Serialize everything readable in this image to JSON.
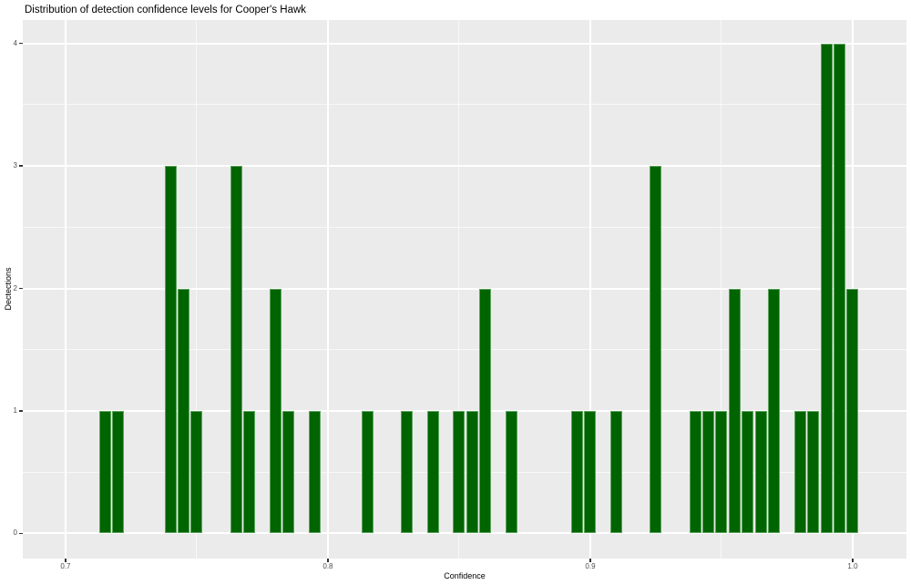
{
  "chart_data": {
    "type": "bar",
    "subtype": "histogram",
    "title": "Distribution of detection confidence levels for Cooper's Hawk",
    "xlabel": "Confidence",
    "ylabel": "Dectections",
    "legend": "none",
    "grid": "on",
    "panel_color": "#ebebeb",
    "grid_color": "#ffffff",
    "bar_color": "#006400",
    "bar_edge_color": "#5ea45e",
    "tick_label_color": "#4d4d4d",
    "tick_mark_color": "#333333",
    "bin_width": 0.005,
    "x_range": [
      0.6837,
      1.0205
    ],
    "y_range": [
      -0.2045,
      4.19
    ],
    "x_ticks": [
      {
        "value": 0.7,
        "label": "0.7"
      },
      {
        "value": 0.8,
        "label": "0.8"
      },
      {
        "value": 0.9,
        "label": "0.9"
      },
      {
        "value": 1.0,
        "label": "1.0"
      }
    ],
    "y_ticks": [
      {
        "value": 0,
        "label": "0"
      },
      {
        "value": 1,
        "label": "1"
      },
      {
        "value": 2,
        "label": "2"
      },
      {
        "value": 3,
        "label": "3"
      },
      {
        "value": 4,
        "label": "4"
      }
    ],
    "x_minor_ticks": [
      0.75,
      0.85,
      0.95
    ],
    "y_minor_ticks": [
      0.5,
      1.5,
      2.5,
      3.5
    ],
    "bins": [
      {
        "confidence": 0.715,
        "detections": 1
      },
      {
        "confidence": 0.72,
        "detections": 1
      },
      {
        "confidence": 0.74,
        "detections": 3
      },
      {
        "confidence": 0.745,
        "detections": 2
      },
      {
        "confidence": 0.75,
        "detections": 1
      },
      {
        "confidence": 0.765,
        "detections": 3
      },
      {
        "confidence": 0.77,
        "detections": 1
      },
      {
        "confidence": 0.78,
        "detections": 2
      },
      {
        "confidence": 0.785,
        "detections": 1
      },
      {
        "confidence": 0.795,
        "detections": 1
      },
      {
        "confidence": 0.815,
        "detections": 1
      },
      {
        "confidence": 0.83,
        "detections": 1
      },
      {
        "confidence": 0.84,
        "detections": 1
      },
      {
        "confidence": 0.85,
        "detections": 1
      },
      {
        "confidence": 0.855,
        "detections": 1
      },
      {
        "confidence": 0.86,
        "detections": 2
      },
      {
        "confidence": 0.87,
        "detections": 1
      },
      {
        "confidence": 0.895,
        "detections": 1
      },
      {
        "confidence": 0.9,
        "detections": 1
      },
      {
        "confidence": 0.91,
        "detections": 1
      },
      {
        "confidence": 0.925,
        "detections": 3
      },
      {
        "confidence": 0.94,
        "detections": 1
      },
      {
        "confidence": 0.945,
        "detections": 1
      },
      {
        "confidence": 0.95,
        "detections": 1
      },
      {
        "confidence": 0.955,
        "detections": 2
      },
      {
        "confidence": 0.96,
        "detections": 1
      },
      {
        "confidence": 0.965,
        "detections": 1
      },
      {
        "confidence": 0.97,
        "detections": 2
      },
      {
        "confidence": 0.98,
        "detections": 1
      },
      {
        "confidence": 0.985,
        "detections": 1
      },
      {
        "confidence": 0.99,
        "detections": 4
      },
      {
        "confidence": 0.995,
        "detections": 4
      },
      {
        "confidence": 1.0,
        "detections": 2
      }
    ]
  }
}
